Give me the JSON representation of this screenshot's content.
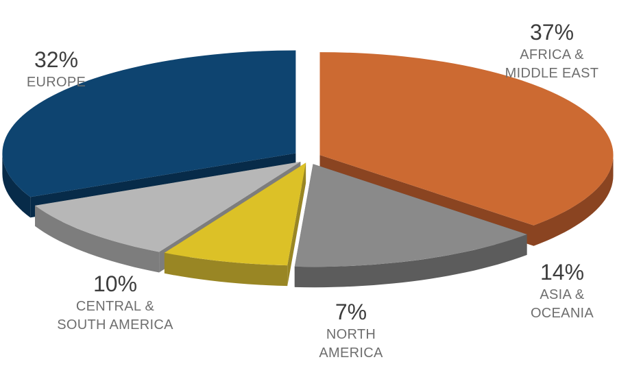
{
  "chart_data": {
    "type": "pie",
    "title": "",
    "slices": [
      {
        "key": "africa",
        "label_lines": [
          "AFRICA &",
          "MIDDLE EAST"
        ],
        "value": 37,
        "value_label": "37%",
        "color": "#CC6A32",
        "side_color": "#8A4421"
      },
      {
        "key": "asia",
        "label_lines": [
          "ASIA &",
          "OCEANIA"
        ],
        "value": 14,
        "value_label": "14%",
        "color": "#8A8A8A",
        "side_color": "#5C5C5C"
      },
      {
        "key": "north-america",
        "label_lines": [
          "NORTH",
          "AMERICA"
        ],
        "value": 7,
        "value_label": "7%",
        "color": "#DCC127",
        "side_color": "#998624"
      },
      {
        "key": "central-south-america",
        "label_lines": [
          "CENTRAL &",
          "SOUTH AMERICA"
        ],
        "value": 10,
        "value_label": "10%",
        "color": "#B7B7B7",
        "side_color": "#7D7D7D"
      },
      {
        "key": "europe",
        "label_lines": [
          "EUROPE"
        ],
        "value": 32,
        "value_label": "32%",
        "color": "#0E4470",
        "side_color": "#072B49"
      }
    ],
    "style": "3d-exploded-pie",
    "legend": "none"
  }
}
